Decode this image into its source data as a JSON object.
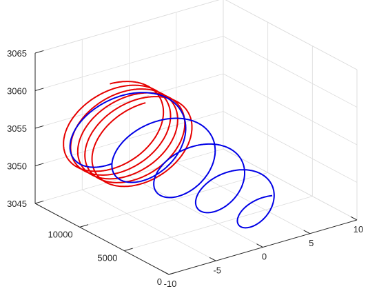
{
  "chart_data": {
    "type": "line3d",
    "grid": true,
    "colors": {
      "series_a": "#e60000",
      "series_b": "#0000e6"
    },
    "xlim": [
      0,
      15000
    ],
    "ylim": [
      -10,
      10
    ],
    "zlim": [
      3045,
      3065
    ],
    "x_ticks": [
      0,
      5000,
      10000
    ],
    "x_tick_labels": [
      "0",
      "5000",
      "10000"
    ],
    "y_ticks": [
      -10,
      -5,
      0,
      5,
      10
    ],
    "y_tick_labels": [
      "-10",
      "-5",
      "0",
      "5",
      "10"
    ],
    "z_ticks": [
      3045,
      3050,
      3055,
      3060,
      3065
    ],
    "z_tick_labels": [
      "3045",
      "3050",
      "3055",
      "3060",
      "3065"
    ],
    "series": [
      {
        "color": "#e60000",
        "shape": "helix",
        "x_range": [
          10000,
          14000
        ],
        "y_center": -3,
        "z_center": 3053.5,
        "radius": 5.5,
        "turns": 5
      },
      {
        "color": "#0000e6",
        "shape": "decaying-spiral",
        "x_range": [
          0,
          13800
        ],
        "y_center_start": 1,
        "y_center_end": -3,
        "z_center_start": 3049,
        "z_center_end": 3054,
        "radius_start": 2.5,
        "radius_end": 5.5,
        "turns": 4.5
      }
    ]
  }
}
